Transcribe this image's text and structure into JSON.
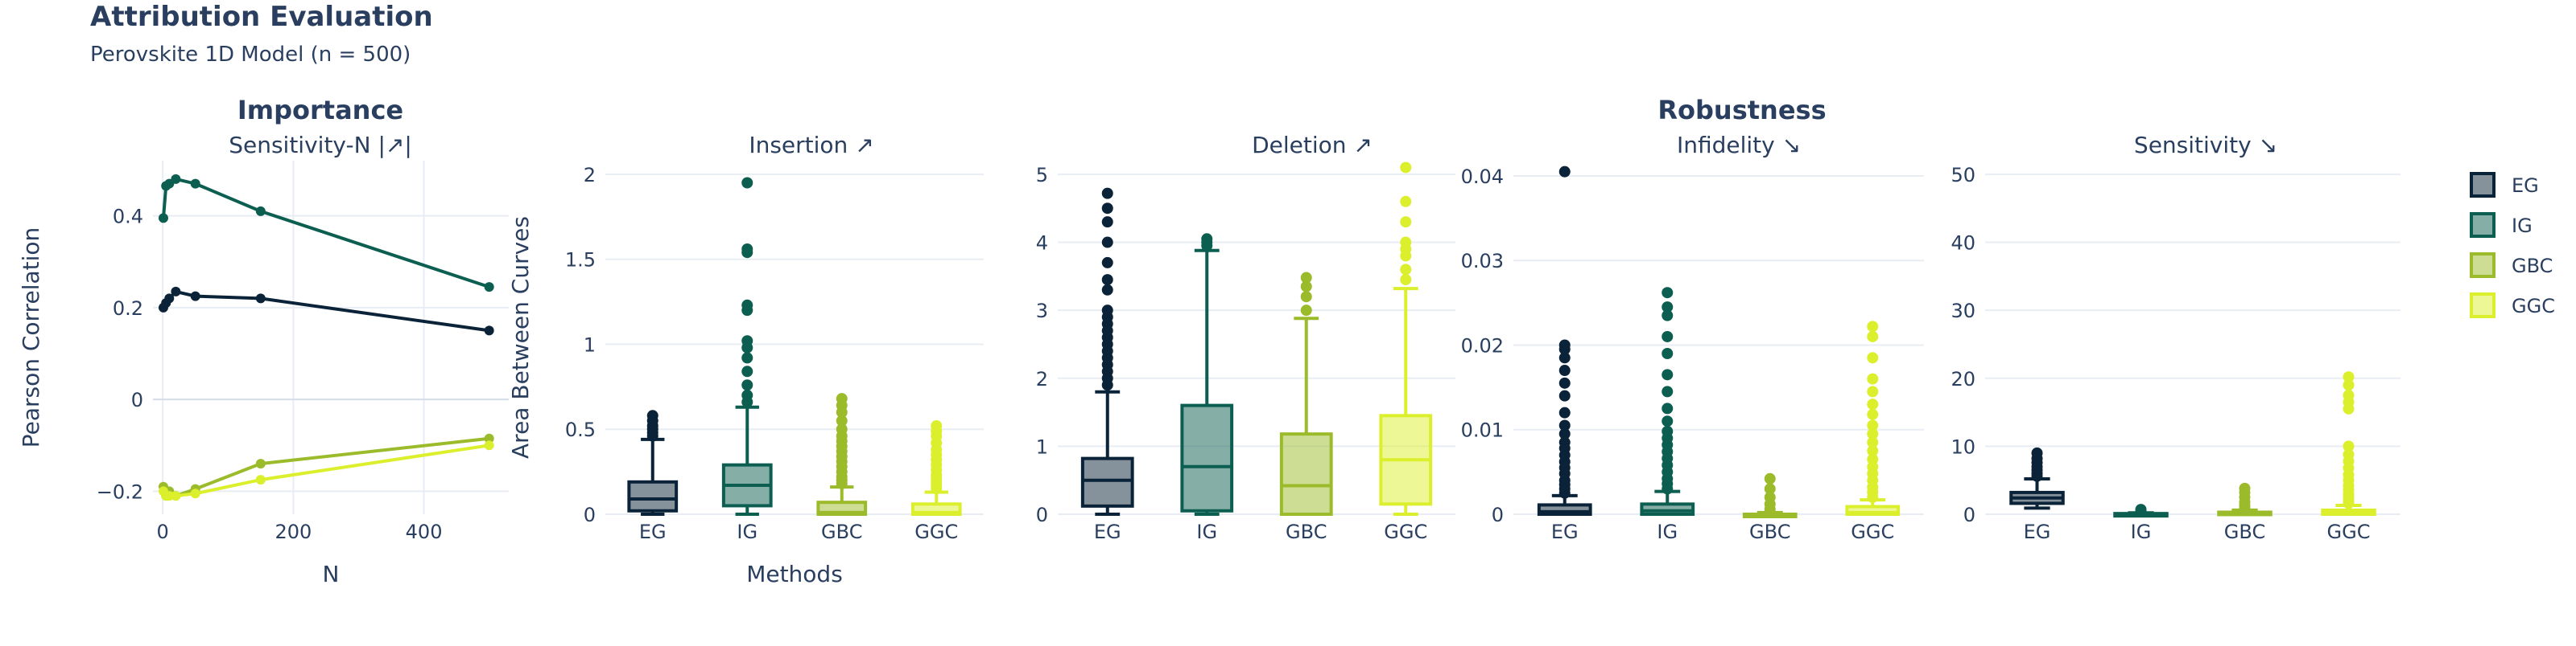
{
  "title": "Attribution Evaluation",
  "subtitle": "Perovskite 1D Model (n = 500)",
  "group_labels": {
    "importance": "Importance",
    "robustness": "Robustness"
  },
  "colors": {
    "EG": "#0b2338",
    "IG": "#0b5e50",
    "GBC": "#9bbb2a",
    "GGC": "#dcef2c",
    "text": "#2a3f5f",
    "grid": "#e8edf4"
  },
  "legend": [
    "EG",
    "IG",
    "GBC",
    "GGC"
  ],
  "chart_data": [
    {
      "type": "line",
      "title": "Sensitivity-N |↗|",
      "xlabel": "N",
      "ylabel": "Pearson Correlation",
      "x": [
        1,
        5,
        10,
        20,
        50,
        150,
        500
      ],
      "xlim": [
        -15,
        530
      ],
      "ylim": [
        -0.25,
        0.52
      ],
      "xticks": [
        0,
        200,
        400
      ],
      "xtick_labels": [
        "0",
        "200",
        "400"
      ],
      "yticks": [
        -0.2,
        0,
        0.2,
        0.4
      ],
      "ytick_labels": [
        "−0.2",
        "0",
        "0.2",
        "0.4"
      ],
      "series": [
        {
          "name": "EG",
          "values": [
            0.2,
            0.21,
            0.22,
            0.235,
            0.225,
            0.22,
            0.15
          ]
        },
        {
          "name": "IG",
          "values": [
            0.395,
            0.465,
            0.47,
            0.48,
            0.47,
            0.41,
            0.245
          ]
        },
        {
          "name": "GBC",
          "values": [
            -0.19,
            -0.21,
            -0.2,
            -0.21,
            -0.195,
            -0.14,
            -0.085
          ]
        },
        {
          "name": "GGC",
          "values": [
            -0.2,
            -0.21,
            -0.21,
            -0.21,
            -0.205,
            -0.175,
            -0.1
          ]
        }
      ]
    },
    {
      "type": "box",
      "title": "Insertion ↗",
      "xlabel": "Methods",
      "ylabel": "Area Between Curves",
      "categories": [
        "EG",
        "IG",
        "GBC",
        "GGC"
      ],
      "ylim": [
        0,
        2.08
      ],
      "yticks": [
        0,
        0.5,
        1,
        1.5,
        2
      ],
      "ytick_labels": [
        "0",
        "0.5",
        "1",
        "1.5",
        "2"
      ],
      "boxes": [
        {
          "name": "EG",
          "q1": 0.02,
          "median": 0.09,
          "q3": 0.19,
          "lower": 0.0,
          "upper": 0.44,
          "outliers": [
            0.46,
            0.48,
            0.5,
            0.52,
            0.55,
            0.58
          ]
        },
        {
          "name": "IG",
          "q1": 0.05,
          "median": 0.17,
          "q3": 0.29,
          "lower": 0.0,
          "upper": 0.63,
          "outliers": [
            0.66,
            0.7,
            0.76,
            0.84,
            0.92,
            0.98,
            1.02,
            1.2,
            1.23,
            1.54,
            1.56,
            1.95
          ]
        },
        {
          "name": "GBC",
          "q1": 0.0,
          "median": 0.01,
          "q3": 0.07,
          "lower": 0.0,
          "upper": 0.16,
          "outliers": [
            0.18,
            0.2,
            0.22,
            0.25,
            0.28,
            0.31,
            0.34,
            0.37,
            0.4,
            0.43,
            0.46,
            0.5,
            0.55,
            0.6,
            0.64,
            0.68
          ]
        },
        {
          "name": "GGC",
          "q1": 0.0,
          "median": 0.01,
          "q3": 0.06,
          "lower": 0.0,
          "upper": 0.13,
          "outliers": [
            0.15,
            0.17,
            0.19,
            0.21,
            0.23,
            0.26,
            0.29,
            0.32,
            0.35,
            0.38,
            0.42,
            0.46,
            0.49,
            0.52
          ]
        }
      ]
    },
    {
      "type": "box",
      "title": "Deletion ↗",
      "categories": [
        "EG",
        "IG",
        "GBC",
        "GGC"
      ],
      "ylim": [
        0,
        5.2
      ],
      "yticks": [
        0,
        1,
        2,
        3,
        4,
        5
      ],
      "ytick_labels": [
        "0",
        "1",
        "2",
        "3",
        "4",
        "5"
      ],
      "boxes": [
        {
          "name": "EG",
          "q1": 0.12,
          "median": 0.5,
          "q3": 0.82,
          "lower": 0.0,
          "upper": 1.8,
          "outliers": [
            1.9,
            2.0,
            2.1,
            2.2,
            2.3,
            2.4,
            2.5,
            2.6,
            2.7,
            2.8,
            2.9,
            3.0,
            3.3,
            3.45,
            3.7,
            4.0,
            4.3,
            4.5,
            4.72
          ]
        },
        {
          "name": "IG",
          "q1": 0.05,
          "median": 0.7,
          "q3": 1.6,
          "lower": 0.0,
          "upper": 3.88,
          "outliers": [
            3.95,
            4.0,
            4.05
          ]
        },
        {
          "name": "GBC",
          "q1": 0.0,
          "median": 0.42,
          "q3": 1.18,
          "lower": 0.0,
          "upper": 2.88,
          "outliers": [
            3.0,
            3.2,
            3.35,
            3.48
          ]
        },
        {
          "name": "GGC",
          "q1": 0.15,
          "median": 0.8,
          "q3": 1.45,
          "lower": 0.0,
          "upper": 3.32,
          "outliers": [
            3.45,
            3.6,
            3.8,
            3.9,
            4.0,
            4.3,
            4.6,
            5.1
          ]
        }
      ]
    },
    {
      "type": "box",
      "title": "Infidelity ↘",
      "categories": [
        "EG",
        "IG",
        "GBC",
        "GGC"
      ],
      "ylim": [
        0,
        0.0418
      ],
      "yticks": [
        0,
        0.01,
        0.02,
        0.03,
        0.04
      ],
      "ytick_labels": [
        "0",
        "0.01",
        "0.02",
        "0.03",
        "0.04"
      ],
      "boxes": [
        {
          "name": "EG",
          "q1": 0.0,
          "median": 0.0003,
          "q3": 0.0011,
          "lower": 0.0,
          "upper": 0.0022,
          "outliers": [
            0.0025,
            0.003,
            0.0035,
            0.004,
            0.0048,
            0.0055,
            0.0062,
            0.007,
            0.0078,
            0.0085,
            0.0095,
            0.0105,
            0.012,
            0.014,
            0.0155,
            0.017,
            0.0185,
            0.0195,
            0.02,
            0.0405
          ]
        },
        {
          "name": "IG",
          "q1": 0.0,
          "median": 0.0004,
          "q3": 0.0012,
          "lower": 0.0,
          "upper": 0.0027,
          "outliers": [
            0.003,
            0.0036,
            0.0042,
            0.005,
            0.0058,
            0.0066,
            0.0074,
            0.0082,
            0.009,
            0.0098,
            0.011,
            0.0125,
            0.0145,
            0.0165,
            0.019,
            0.021,
            0.0235,
            0.0245,
            0.0262
          ]
        },
        {
          "name": "GBC",
          "q1": 0.0,
          "median": 0.0,
          "q3": 0.0,
          "lower": 0.0,
          "upper": 0.0002,
          "outliers": [
            0.0006,
            0.0012,
            0.002,
            0.003,
            0.0042
          ]
        },
        {
          "name": "GGC",
          "q1": 0.0,
          "median": 0.0002,
          "q3": 0.0009,
          "lower": 0.0,
          "upper": 0.0017,
          "outliers": [
            0.002,
            0.0026,
            0.0032,
            0.004,
            0.0048,
            0.0056,
            0.0065,
            0.0075,
            0.0085,
            0.0095,
            0.0105,
            0.0118,
            0.013,
            0.0145,
            0.016,
            0.0185,
            0.021,
            0.0222
          ]
        }
      ]
    },
    {
      "type": "box",
      "title": "Sensitivity ↘",
      "categories": [
        "EG",
        "IG",
        "GBC",
        "GGC"
      ],
      "ylim": [
        0,
        52
      ],
      "yticks": [
        0,
        10,
        20,
        30,
        40,
        50
      ],
      "ytick_labels": [
        "0",
        "10",
        "20",
        "30",
        "40",
        "50"
      ],
      "boxes": [
        {
          "name": "EG",
          "q1": 1.6,
          "median": 2.4,
          "q3": 3.2,
          "lower": 0.9,
          "upper": 5.2,
          "outliers": [
            5.6,
            6.0,
            6.5,
            7.0,
            7.6,
            8.2,
            9.0
          ]
        },
        {
          "name": "IG",
          "q1": 0.0,
          "median": 0.0,
          "q3": 0.1,
          "lower": 0.0,
          "upper": 0.2,
          "outliers": [
            0.4,
            0.7
          ]
        },
        {
          "name": "GBC",
          "q1": 0.0,
          "median": 0.1,
          "q3": 0.3,
          "lower": 0.0,
          "upper": 0.6,
          "outliers": [
            0.9,
            1.3,
            1.8,
            2.5,
            3.2,
            3.8
          ]
        },
        {
          "name": "GGC",
          "q1": 0.0,
          "median": 0.2,
          "q3": 0.6,
          "lower": 0.0,
          "upper": 1.3,
          "outliers": [
            1.6,
            2.0,
            2.5,
            3.0,
            3.6,
            4.2,
            5.0,
            5.8,
            6.8,
            7.8,
            8.8,
            10.0,
            15.5,
            16.5,
            17.5,
            19.0,
            20.2
          ]
        }
      ]
    }
  ]
}
